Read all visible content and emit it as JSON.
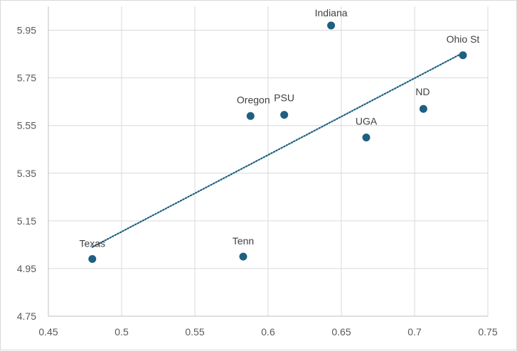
{
  "chart_data": {
    "type": "scatter",
    "title": "",
    "xlabel": "",
    "ylabel": "",
    "xlim": [
      0.45,
      0.75
    ],
    "ylim": [
      4.75,
      6.05
    ],
    "x_ticks": [
      0.45,
      0.5,
      0.55,
      0.6,
      0.65,
      0.7,
      0.75
    ],
    "x_tick_labels": [
      "0.45",
      "0.5",
      "0.55",
      "0.6",
      "0.65",
      "0.7",
      "0.75"
    ],
    "y_ticks": [
      4.75,
      4.95,
      5.15,
      5.35,
      5.55,
      5.75,
      5.95
    ],
    "y_tick_labels": [
      "4.75",
      "4.95",
      "5.15",
      "5.35",
      "5.55",
      "5.75",
      "5.95"
    ],
    "grid": true,
    "legend": "none",
    "marker_color": "#1f5f82",
    "trendline": {
      "type": "linear",
      "style": "dotted",
      "color": "#1f5f82",
      "from": {
        "x": 0.48,
        "y": 5.04
      },
      "to": {
        "x": 0.733,
        "y": 5.855
      }
    },
    "points": [
      {
        "label": "Texas",
        "x": 0.48,
        "y": 4.99
      },
      {
        "label": "Tenn",
        "x": 0.583,
        "y": 5.0
      },
      {
        "label": "Oregon",
        "x": 0.588,
        "y": 5.59
      },
      {
        "label": "PSU",
        "x": 0.611,
        "y": 5.595
      },
      {
        "label": "Indiana",
        "x": 0.643,
        "y": 5.97
      },
      {
        "label": "UGA",
        "x": 0.667,
        "y": 5.5
      },
      {
        "label": "ND",
        "x": 0.706,
        "y": 5.62
      },
      {
        "label": "Ohio St",
        "x": 0.733,
        "y": 5.845
      }
    ]
  }
}
